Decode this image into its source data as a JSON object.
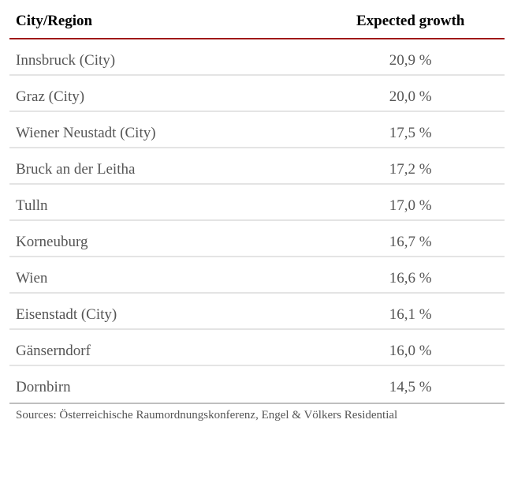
{
  "table": {
    "columns": [
      {
        "key": "region",
        "label": "City/Region",
        "align": "left"
      },
      {
        "key": "growth",
        "label": "Expected growth",
        "align": "center"
      }
    ],
    "rows": [
      {
        "region": "Innsbruck (City)",
        "growth": "20,9 %"
      },
      {
        "region": "Graz (City)",
        "growth": "20,0 %"
      },
      {
        "region": "Wiener Neustadt (City)",
        "growth": "17,5 %"
      },
      {
        "region": "Bruck an der Leitha",
        "growth": "17,2 %"
      },
      {
        "region": "Tulln",
        "growth": "17,0 %"
      },
      {
        "region": "Korneuburg",
        "growth": "16,7 %"
      },
      {
        "region": "Wien",
        "growth": "16,6 %"
      },
      {
        "region": "Eisenstadt (City)",
        "growth": "16,1 %"
      },
      {
        "region": "Gänserndorf",
        "growth": "16,0 %"
      },
      {
        "region": "Dornbirn",
        "growth": "14,5 %"
      }
    ],
    "header_border_color": "#a01818",
    "row_border_color": "#e4e4e4",
    "footer_border_color": "#bfbfbf",
    "header_fontsize": 19,
    "cell_fontsize": 19,
    "header_color": "#000000",
    "cell_color": "#555555",
    "background_color": "#ffffff"
  },
  "sources": "Sources: Österreichische Raumordnungskonferenz, Engel & Völkers Residential"
}
